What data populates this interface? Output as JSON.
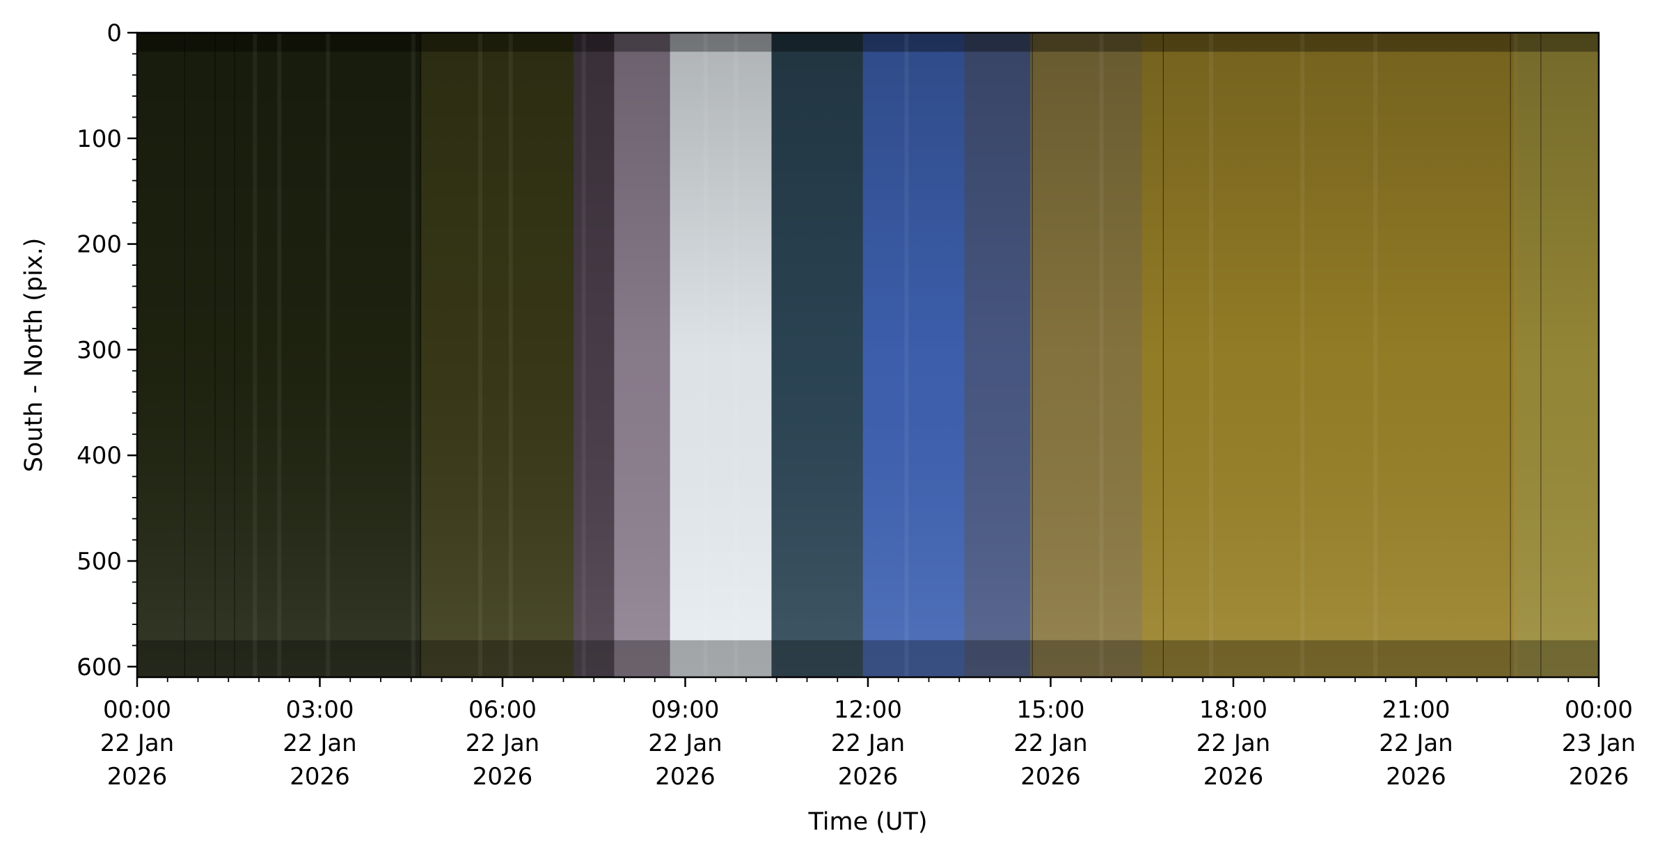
{
  "chart_data": {
    "type": "heatmap",
    "title": "",
    "xlabel": "Time (UT)",
    "ylabel": "South - North (pix.)",
    "xlim": [
      "2026-01-22T00:00",
      "2026-01-23T00:00"
    ],
    "ylim": [
      610,
      0
    ],
    "y_inverted": true,
    "grid": false,
    "legend": "none",
    "x_ticks": [
      {
        "time": "00:00",
        "date": "22 Jan",
        "year": "2026"
      },
      {
        "time": "03:00",
        "date": "22 Jan",
        "year": "2026"
      },
      {
        "time": "06:00",
        "date": "22 Jan",
        "year": "2026"
      },
      {
        "time": "09:00",
        "date": "22 Jan",
        "year": "2026"
      },
      {
        "time": "12:00",
        "date": "22 Jan",
        "year": "2026"
      },
      {
        "time": "15:00",
        "date": "22 Jan",
        "year": "2026"
      },
      {
        "time": "18:00",
        "date": "22 Jan",
        "year": "2026"
      },
      {
        "time": "21:00",
        "date": "22 Jan",
        "year": "2026"
      },
      {
        "time": "00:00",
        "date": "23 Jan",
        "year": "2026"
      }
    ],
    "y_ticks": [
      0,
      100,
      200,
      300,
      400,
      500,
      600
    ],
    "color_segments": [
      {
        "start": "00:00",
        "end": "04:40",
        "color": "#1f2410"
      },
      {
        "start": "04:40",
        "end": "07:10",
        "color": "#3a3a18"
      },
      {
        "start": "07:10",
        "end": "07:50",
        "color": "#4a3e4a"
      },
      {
        "start": "07:50",
        "end": "08:45",
        "color": "#8e8090"
      },
      {
        "start": "08:45",
        "end": "10:25",
        "color": "#e8eef2"
      },
      {
        "start": "10:25",
        "end": "11:55",
        "color": "#2c4656"
      },
      {
        "start": "11:55",
        "end": "13:35",
        "color": "#3f63b4"
      },
      {
        "start": "13:35",
        "end": "14:40",
        "color": "#4a5a86"
      },
      {
        "start": "14:40",
        "end": "16:30",
        "color": "#8a7840"
      },
      {
        "start": "16:30",
        "end": "22:40",
        "color": "#9a8228"
      },
      {
        "start": "22:40",
        "end": "24:00",
        "color": "#9a8c38"
      }
    ]
  }
}
